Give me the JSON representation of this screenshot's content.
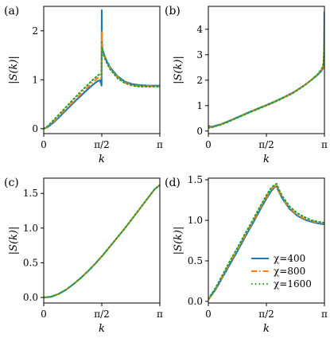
{
  "colors": {
    "chi400": "#1f77b4",
    "chi800": "#ff7f0e",
    "chi1600": "#2ca02c"
  },
  "chart_data": [
    {
      "panel": "(a)",
      "type": "line",
      "xlabel": "k",
      "ylabel": "|S(k)|",
      "xlim": [
        0,
        3.14159
      ],
      "ylim": [
        -0.1,
        2.5
      ],
      "xticks": [
        0,
        1.5708,
        3.14159
      ],
      "xticklabels": [
        "0",
        "π/2",
        "π"
      ],
      "yticks": [
        0,
        1,
        2
      ],
      "yticklabels": [
        "0",
        "1",
        "2"
      ],
      "series": [
        {
          "name": "χ=400",
          "style": "solid",
          "color": "#1f77b4",
          "x": [
            0.0,
            0.1,
            0.3,
            0.5,
            0.7,
            0.9,
            1.1,
            1.3,
            1.45,
            1.52,
            1.55,
            1.565,
            1.57,
            1.575,
            1.59,
            1.62,
            1.7,
            1.8,
            2.0,
            2.2,
            2.4,
            2.6,
            2.8,
            3.0,
            3.14
          ],
          "y": [
            0.0,
            0.03,
            0.15,
            0.3,
            0.45,
            0.6,
            0.74,
            0.88,
            0.97,
            0.99,
            0.93,
            0.88,
            2.42,
            1.8,
            1.62,
            1.55,
            1.39,
            1.25,
            1.07,
            0.96,
            0.91,
            0.89,
            0.88,
            0.88,
            0.88
          ]
        },
        {
          "name": "χ=800",
          "style": "dashdot",
          "color": "#ff7f0e",
          "x": [
            0.0,
            0.1,
            0.3,
            0.5,
            0.7,
            0.9,
            1.1,
            1.3,
            1.45,
            1.52,
            1.56,
            1.57,
            1.575,
            1.59,
            1.62,
            1.7,
            1.8,
            2.0,
            2.2,
            2.4,
            2.6,
            2.8,
            3.0,
            3.14
          ],
          "y": [
            0.0,
            0.04,
            0.17,
            0.33,
            0.48,
            0.63,
            0.78,
            0.93,
            1.03,
            1.06,
            1.02,
            2.0,
            1.75,
            1.6,
            1.52,
            1.37,
            1.23,
            1.05,
            0.94,
            0.89,
            0.87,
            0.87,
            0.87,
            0.87
          ]
        },
        {
          "name": "χ=1600",
          "style": "dotted",
          "color": "#2ca02c",
          "x": [
            0.0,
            0.1,
            0.3,
            0.5,
            0.7,
            0.9,
            1.1,
            1.3,
            1.45,
            1.52,
            1.56,
            1.57,
            1.575,
            1.59,
            1.62,
            1.7,
            1.8,
            2.0,
            2.2,
            2.4,
            2.6,
            2.8,
            3.0,
            3.14
          ],
          "y": [
            0.0,
            0.05,
            0.2,
            0.36,
            0.52,
            0.68,
            0.83,
            0.98,
            1.08,
            1.12,
            1.1,
            1.5,
            1.65,
            1.57,
            1.5,
            1.35,
            1.21,
            1.03,
            0.93,
            0.88,
            0.86,
            0.86,
            0.86,
            0.86
          ]
        }
      ]
    },
    {
      "panel": "(b)",
      "type": "line",
      "xlabel": "k",
      "ylabel": "|S(k)|",
      "xlim": [
        0,
        3.14159
      ],
      "ylim": [
        -0.1,
        4.9
      ],
      "xticks": [
        0,
        1.5708,
        3.14159
      ],
      "xticklabels": [
        "0",
        "π/2",
        "π"
      ],
      "yticks": [
        0,
        1,
        2,
        3,
        4
      ],
      "yticklabels": [
        "0",
        "1",
        "2",
        "3",
        "4"
      ],
      "series": [
        {
          "name": "χ=400",
          "style": "solid",
          "color": "#1f77b4",
          "x": [
            0.0,
            0.1,
            0.3,
            0.5,
            0.8,
            1.1,
            1.4,
            1.7,
            2.0,
            2.3,
            2.6,
            2.8,
            2.95,
            3.05,
            3.1,
            3.12,
            3.135,
            3.14
          ],
          "y": [
            0.2,
            0.17,
            0.25,
            0.36,
            0.55,
            0.74,
            0.92,
            1.1,
            1.3,
            1.52,
            1.8,
            2.02,
            2.2,
            2.35,
            2.45,
            2.6,
            3.2,
            4.7
          ]
        },
        {
          "name": "χ=800",
          "style": "dashdot",
          "color": "#ff7f0e",
          "x": [
            0.0,
            0.1,
            0.3,
            0.5,
            0.8,
            1.1,
            1.4,
            1.7,
            2.0,
            2.3,
            2.6,
            2.8,
            2.95,
            3.05,
            3.1,
            3.12,
            3.135,
            3.14
          ],
          "y": [
            0.15,
            0.16,
            0.24,
            0.35,
            0.54,
            0.73,
            0.91,
            1.09,
            1.29,
            1.51,
            1.8,
            2.03,
            2.22,
            2.38,
            2.5,
            2.7,
            3.0,
            3.3
          ]
        },
        {
          "name": "χ=1600",
          "style": "dotted",
          "color": "#2ca02c",
          "x": [
            0.0,
            0.1,
            0.3,
            0.5,
            0.8,
            1.1,
            1.4,
            1.7,
            2.0,
            2.3,
            2.6,
            2.8,
            2.95,
            3.05,
            3.1,
            3.12,
            3.135,
            3.14
          ],
          "y": [
            0.12,
            0.15,
            0.23,
            0.34,
            0.53,
            0.72,
            0.9,
            1.08,
            1.28,
            1.5,
            1.79,
            2.02,
            2.22,
            2.4,
            2.55,
            2.8,
            3.4,
            4.0
          ]
        }
      ]
    },
    {
      "panel": "(c)",
      "type": "line",
      "xlabel": "k",
      "ylabel": "|S(k)|",
      "xlim": [
        0,
        3.14159
      ],
      "ylim": [
        -0.08,
        1.72
      ],
      "xticks": [
        0,
        1.5708,
        3.14159
      ],
      "xticklabels": [
        "0",
        "π/2",
        "π"
      ],
      "yticks": [
        0,
        0.5,
        1,
        1.5
      ],
      "yticklabels": [
        "0.0",
        "0.5",
        "1.0",
        "1.5"
      ],
      "series": [
        {
          "name": "χ=400",
          "style": "solid",
          "color": "#1f77b4",
          "x": [
            0.0,
            0.2,
            0.4,
            0.6,
            0.8,
            1.0,
            1.2,
            1.4,
            1.6,
            1.8,
            2.0,
            2.2,
            2.4,
            2.6,
            2.8,
            3.0,
            3.14
          ],
          "y": [
            0.0,
            0.01,
            0.05,
            0.11,
            0.19,
            0.28,
            0.38,
            0.49,
            0.61,
            0.74,
            0.87,
            1.0,
            1.14,
            1.28,
            1.42,
            1.56,
            1.62
          ]
        },
        {
          "name": "χ=800",
          "style": "dashdot",
          "color": "#ff7f0e",
          "x": [
            0.0,
            0.2,
            0.4,
            0.6,
            0.8,
            1.0,
            1.2,
            1.4,
            1.6,
            1.8,
            2.0,
            2.2,
            2.4,
            2.6,
            2.8,
            3.0,
            3.14
          ],
          "y": [
            0.0,
            0.01,
            0.05,
            0.11,
            0.19,
            0.28,
            0.38,
            0.49,
            0.61,
            0.74,
            0.87,
            1.0,
            1.14,
            1.28,
            1.42,
            1.56,
            1.62
          ]
        },
        {
          "name": "χ=1600",
          "style": "dotted",
          "color": "#2ca02c",
          "x": [
            0.0,
            0.2,
            0.4,
            0.6,
            0.8,
            1.0,
            1.2,
            1.4,
            1.6,
            1.8,
            2.0,
            2.2,
            2.4,
            2.6,
            2.8,
            3.0,
            3.14
          ],
          "y": [
            0.0,
            0.01,
            0.05,
            0.11,
            0.19,
            0.28,
            0.38,
            0.49,
            0.61,
            0.74,
            0.87,
            1.0,
            1.14,
            1.28,
            1.42,
            1.56,
            1.62
          ]
        }
      ]
    },
    {
      "panel": "(d)",
      "type": "line",
      "xlabel": "k",
      "ylabel": "|S(k)|",
      "xlim": [
        0,
        3.14159
      ],
      "ylim": [
        -0.02,
        1.52
      ],
      "xticks": [
        0,
        1.5708,
        3.14159
      ],
      "xticklabels": [
        "0",
        "π/2",
        "π"
      ],
      "yticks": [
        0,
        0.5,
        1,
        1.5
      ],
      "yticklabels": [
        "0.0",
        "0.5",
        "1.0",
        "1.5"
      ],
      "legend": {
        "placement": "lower-right",
        "entries": [
          "χ=400",
          "χ=800",
          "χ=1600"
        ]
      },
      "series": [
        {
          "name": "χ=400",
          "style": "solid",
          "color": "#1f77b4",
          "x": [
            0.0,
            0.2,
            0.4,
            0.6,
            0.8,
            1.0,
            1.2,
            1.4,
            1.6,
            1.7,
            1.8,
            1.85,
            1.9,
            2.0,
            2.2,
            2.4,
            2.6,
            2.8,
            3.0,
            3.14
          ],
          "y": [
            0.02,
            0.15,
            0.31,
            0.47,
            0.63,
            0.8,
            0.96,
            1.13,
            1.29,
            1.36,
            1.41,
            1.42,
            1.36,
            1.27,
            1.14,
            1.06,
            1.01,
            0.98,
            0.96,
            0.95
          ]
        },
        {
          "name": "χ=800",
          "style": "dashdot",
          "color": "#ff7f0e",
          "x": [
            0.0,
            0.2,
            0.4,
            0.6,
            0.8,
            1.0,
            1.2,
            1.4,
            1.6,
            1.7,
            1.8,
            1.85,
            1.9,
            2.0,
            2.2,
            2.4,
            2.6,
            2.8,
            3.0,
            3.14
          ],
          "y": [
            0.02,
            0.16,
            0.32,
            0.49,
            0.65,
            0.82,
            0.98,
            1.15,
            1.31,
            1.38,
            1.42,
            1.43,
            1.37,
            1.28,
            1.15,
            1.07,
            1.02,
            0.99,
            0.97,
            0.96
          ]
        },
        {
          "name": "χ=1600",
          "style": "dotted",
          "color": "#2ca02c",
          "x": [
            0.0,
            0.2,
            0.4,
            0.6,
            0.8,
            1.0,
            1.2,
            1.4,
            1.6,
            1.7,
            1.8,
            1.85,
            1.9,
            2.0,
            2.2,
            2.4,
            2.6,
            2.8,
            3.0,
            3.14
          ],
          "y": [
            0.03,
            0.17,
            0.34,
            0.51,
            0.67,
            0.84,
            1.0,
            1.17,
            1.33,
            1.4,
            1.44,
            1.45,
            1.39,
            1.3,
            1.17,
            1.09,
            1.04,
            1.0,
            0.98,
            0.97
          ]
        }
      ]
    }
  ]
}
